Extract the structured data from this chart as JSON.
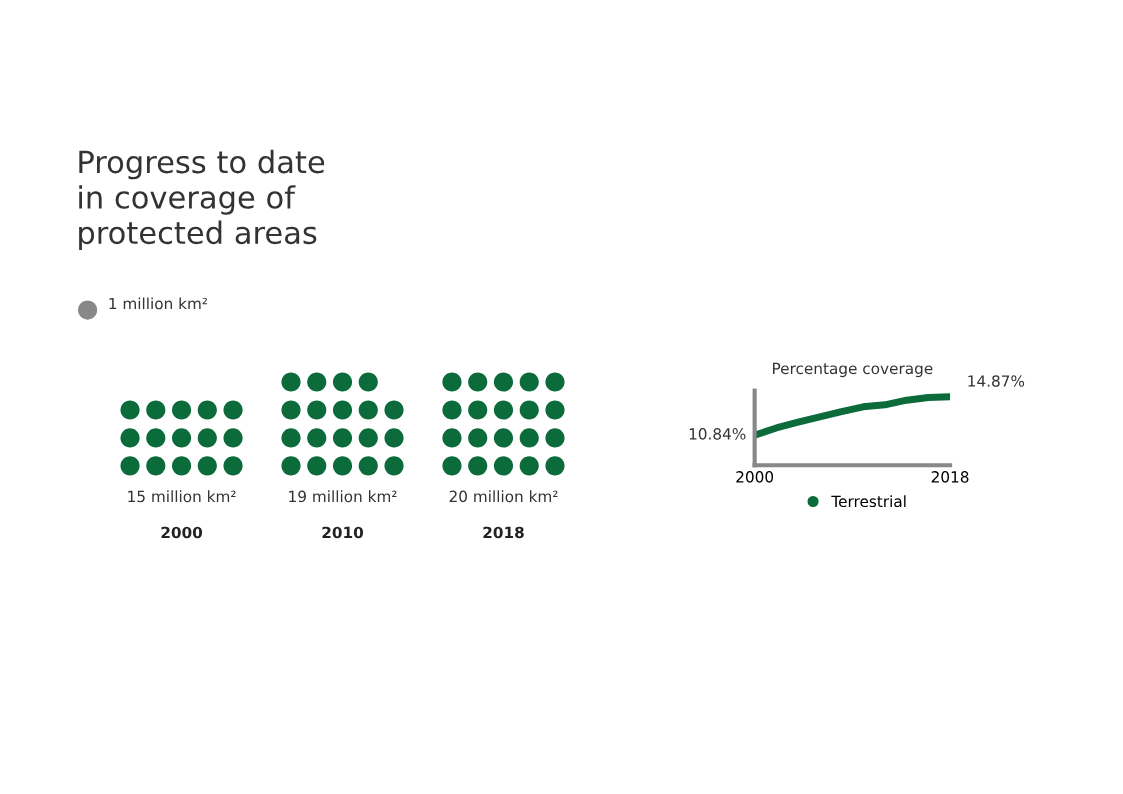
{
  "chart_data": [
    {
      "type": "other",
      "title": "Progress to date\nin coverage of\nprotected areas",
      "annotations": [
        "1 million km²"
      ],
      "categories": [
        "2000",
        "2010",
        "2018"
      ],
      "values": [
        15,
        19,
        20
      ],
      "value_labels": [
        "15 million km²",
        "19 million km²",
        "20 million km²"
      ],
      "color": "#0b6b3a"
    },
    {
      "type": "line",
      "title": "Percentage coverage",
      "x": [
        2000,
        2002,
        2004,
        2006,
        2008,
        2010,
        2012,
        2014,
        2016,
        2018
      ],
      "xlim": [
        2000,
        2018
      ],
      "xticks": [
        2000,
        2018
      ],
      "ylim": [
        7.7,
        15.5
      ],
      "tick_labels": "x",
      "legend": "bottom",
      "series": [
        {
          "name": "Terrestrial",
          "color": "#0b6b3a",
          "values": [
            10.84,
            11.6,
            12.2,
            12.75,
            13.3,
            13.81,
            14.02,
            14.5,
            14.79,
            14.87
          ],
          "value_labels": [
            "10.84%",
            null,
            null,
            null,
            null,
            null,
            null,
            null,
            null,
            "14.87%"
          ]
        }
      ]
    }
  ]
}
